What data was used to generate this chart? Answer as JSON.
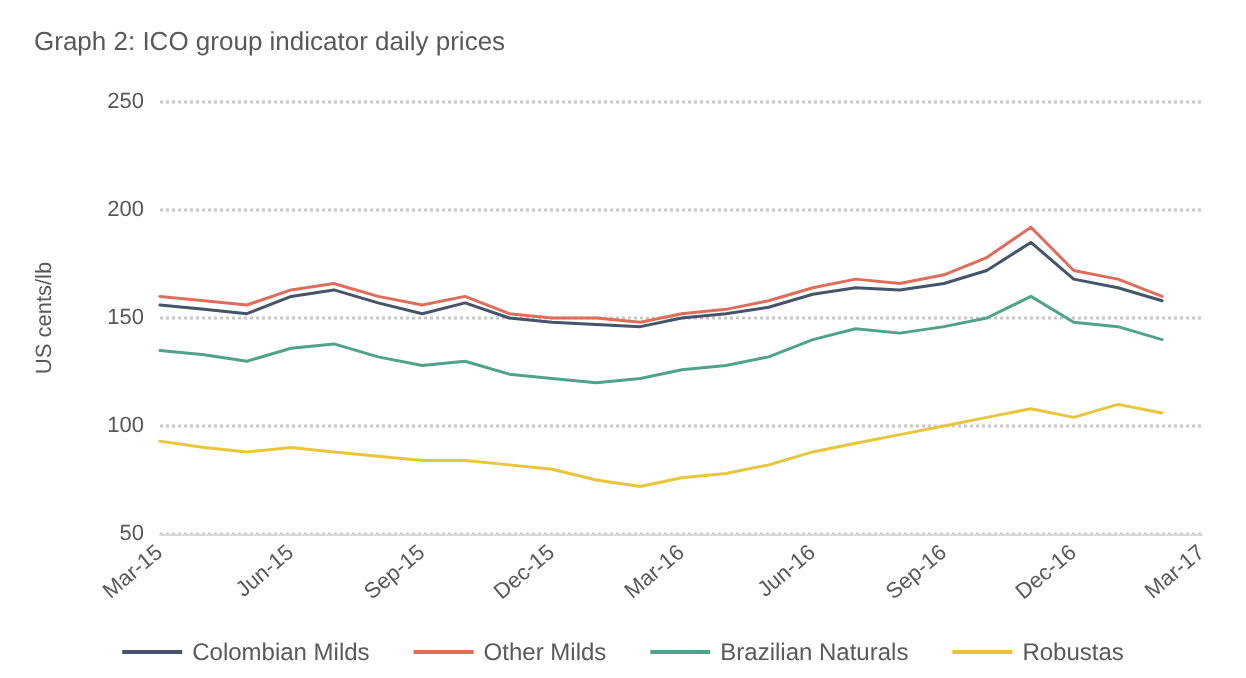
{
  "chart_data": {
    "type": "line",
    "title": "Graph 2: ICO group indicator daily prices",
    "ylabel": "US cents/lb",
    "x": [
      "2015-03-01",
      "2015-04-01",
      "2015-05-01",
      "2015-06-01",
      "2015-07-01",
      "2015-08-01",
      "2015-09-01",
      "2015-10-01",
      "2015-11-01",
      "2015-12-01",
      "2016-01-01",
      "2016-02-01",
      "2016-03-01",
      "2016-04-01",
      "2016-05-01",
      "2016-06-01",
      "2016-07-01",
      "2016-08-01",
      "2016-09-01",
      "2016-10-01",
      "2016-11-01",
      "2016-12-01",
      "2017-01-01",
      "2017-02-01"
    ],
    "series": [
      {
        "name": "Colombian Milds",
        "color": "#44546a",
        "values": [
          156,
          154,
          152,
          160,
          163,
          157,
          152,
          157,
          150,
          148,
          147,
          146,
          150,
          152,
          155,
          161,
          164,
          163,
          166,
          172,
          185,
          168,
          164,
          158
        ]
      },
      {
        "name": "Other Milds",
        "color": "#e06c5a",
        "values": [
          160,
          158,
          156,
          163,
          166,
          160,
          156,
          160,
          152,
          150,
          150,
          148,
          152,
          154,
          158,
          164,
          168,
          166,
          170,
          178,
          192,
          172,
          168,
          160
        ]
      },
      {
        "name": "Brazilian Naturals",
        "color": "#4ea38a",
        "values": [
          135,
          133,
          130,
          136,
          138,
          132,
          128,
          130,
          124,
          122,
          120,
          122,
          126,
          128,
          132,
          140,
          145,
          143,
          146,
          150,
          160,
          148,
          146,
          140
        ]
      },
      {
        "name": "Robustas",
        "color": "#e8c53a",
        "values": [
          93,
          90,
          88,
          90,
          88,
          86,
          84,
          84,
          82,
          80,
          75,
          72,
          76,
          78,
          82,
          88,
          92,
          96,
          100,
          104,
          108,
          104,
          110,
          106
        ]
      }
    ],
    "xlim": [
      "2015-03-01",
      "2017-03-01"
    ],
    "xticks": [
      {
        "value": "2015-03-01",
        "label": "Mar-15"
      },
      {
        "value": "2015-06-01",
        "label": "Jun-15"
      },
      {
        "value": "2015-09-01",
        "label": "Sep-15"
      },
      {
        "value": "2015-12-01",
        "label": "Dec-15"
      },
      {
        "value": "2016-03-01",
        "label": "Mar-16"
      },
      {
        "value": "2016-06-01",
        "label": "Jun-16"
      },
      {
        "value": "2016-09-01",
        "label": "Sep-16"
      },
      {
        "value": "2016-12-01",
        "label": "Dec-16"
      },
      {
        "value": "2017-03-01",
        "label": "Mar-17"
      }
    ],
    "ylim": [
      50,
      250
    ],
    "yticks": [
      50,
      100,
      150,
      200,
      250
    ],
    "grid": "y",
    "legend": "bottom",
    "marker": "none",
    "line_style": "solid"
  }
}
